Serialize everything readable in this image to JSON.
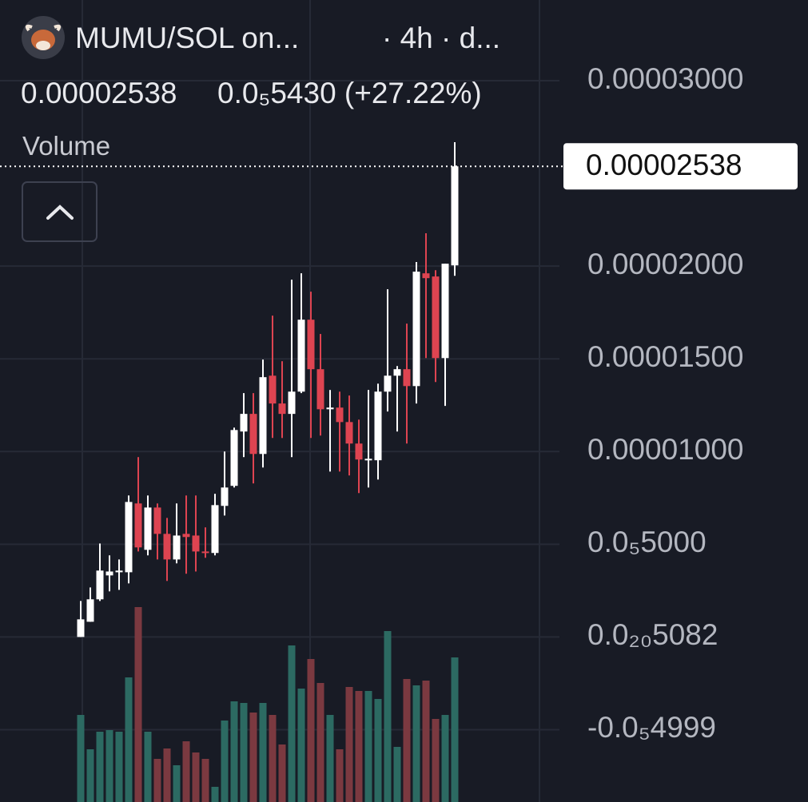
{
  "chart_data": {
    "type": "candlestick",
    "title": "MUMU/SOL on...",
    "interval": "· 4h · d...",
    "last_price": {
      "value": 2.538e-05,
      "label": "0.00002538"
    },
    "change": "0.0₅5430 (+27.22%)",
    "volume_label": "Volume",
    "ylim": [
      -8.9e-06,
      3.435e-05
    ],
    "yticks": [
      {
        "value": 3e-05,
        "label": "0.00003000"
      },
      {
        "value": 2e-05,
        "label": "0.00002000"
      },
      {
        "value": 1.5e-05,
        "label": "0.00001500"
      },
      {
        "value": 1e-05,
        "label": "0.00001000"
      },
      {
        "value": 5e-06,
        "label": "0.0₅5000"
      },
      {
        "value": 5.082e-21,
        "label": "0.0₂₀5082"
      },
      {
        "value": -4.999e-06,
        "label": "-0.0₅4999"
      }
    ],
    "grid": true,
    "up_color": "#ffffff",
    "down_color": "#de4451",
    "volume_up_color": "#2c6a62",
    "volume_down_color": "#7b3940",
    "open": [
      0,
      8.2e-07,
      2.03e-06,
      3.32e-06,
      3.49e-06,
      3.49e-06,
      7.2e-06,
      4.7e-06,
      6.98e-06,
      5.56e-06,
      4.18e-06,
      5.56e-06,
      5.47e-06,
      4.61e-06,
      4.53e-06,
      7.07e-06,
      8.15e-06,
      1.108e-05,
      1.203e-05,
      9.87e-06,
      1.409e-05,
      1.259e-05,
      1.203e-05,
      1.323e-05,
      1.711e-05,
      1.444e-05,
      1.228e-05,
      1.237e-05,
      1.159e-05,
      1.043e-05,
      9.57e-06,
      9.53e-06,
      1.323e-05,
      1.409e-05,
      1.444e-05,
      1.353e-05,
      1.961e-05,
      1.944e-05,
      1.504e-05,
      2.004e-05
    ],
    "high": [
      1.94e-06,
      2.67e-06,
      5.04e-06,
      4.4e-06,
      4.18e-06,
      7.63e-06,
      9.7e-06,
      7.63e-06,
      7.2e-06,
      6.42e-06,
      7.2e-06,
      7.63e-06,
      7.63e-06,
      5.91e-06,
      7.72e-06,
      1e-05,
      1.129e-05,
      1.315e-05,
      1.315e-05,
      1.496e-05,
      1.733e-05,
      1.487e-05,
      1.927e-05,
      1.961e-05,
      1.862e-05,
      1.634e-05,
      1.332e-05,
      1.323e-05,
      1.302e-05,
      1.172e-05,
      1.332e-05,
      1.366e-05,
      1.875e-05,
      1.461e-05,
      1.69e-05,
      2.022e-05,
      2.177e-05,
      1.978e-05,
      2.013e-05,
      2.668e-05
    ],
    "low": [
      0,
      8.2e-07,
      1.94e-06,
      2.46e-06,
      2.54e-06,
      2.89e-06,
      4.61e-06,
      4.4e-06,
      4.18e-06,
      3.02e-06,
      3.97e-06,
      3.41e-06,
      3.53e-06,
      4.27e-06,
      4.4e-06,
      6.55e-06,
      8.06e-06,
      9.7e-06,
      8.28e-06,
      9.14e-06,
      1.073e-05,
      1.073e-05,
      9.7e-06,
      1.315e-05,
      1.073e-05,
      1.086e-05,
      8.92e-06,
      8.92e-06,
      8.71e-06,
      7.76e-06,
      8.06e-06,
      8.49e-06,
      1.216e-05,
      1.108e-05,
      1.043e-05,
      1.259e-05,
      1.504e-05,
      1.375e-05,
      1.246e-05,
      1.948e-05
    ],
    "close": [
      9.5e-07,
      2.03e-06,
      3.58e-06,
      3.53e-06,
      3.58e-06,
      7.28e-06,
      4.83e-06,
      6.98e-06,
      5.56e-06,
      4.18e-06,
      5.47e-06,
      5.39e-06,
      4.61e-06,
      4.53e-06,
      7.11e-06,
      8.06e-06,
      1.116e-05,
      1.203e-05,
      9.87e-06,
      1.401e-05,
      1.259e-05,
      1.203e-05,
      1.323e-05,
      1.711e-05,
      1.444e-05,
      1.228e-05,
      1.237e-05,
      1.159e-05,
      1.043e-05,
      9.57e-06,
      9.61e-06,
      1.323e-05,
      1.409e-05,
      1.444e-05,
      1.353e-05,
      1.97e-05,
      1.935e-05,
      1.504e-05,
      2.013e-05,
      2.538e-05
    ],
    "volume": [
      109,
      66,
      88,
      90,
      88,
      156,
      244,
      88,
      54,
      67,
      46,
      76,
      62,
      54,
      19,
      102,
      126,
      124,
      112,
      124,
      109,
      72,
      196,
      142,
      179,
      149,
      109,
      66,
      144,
      139,
      139,
      129,
      214,
      69,
      154,
      146,
      152,
      104,
      109,
      181
    ]
  }
}
